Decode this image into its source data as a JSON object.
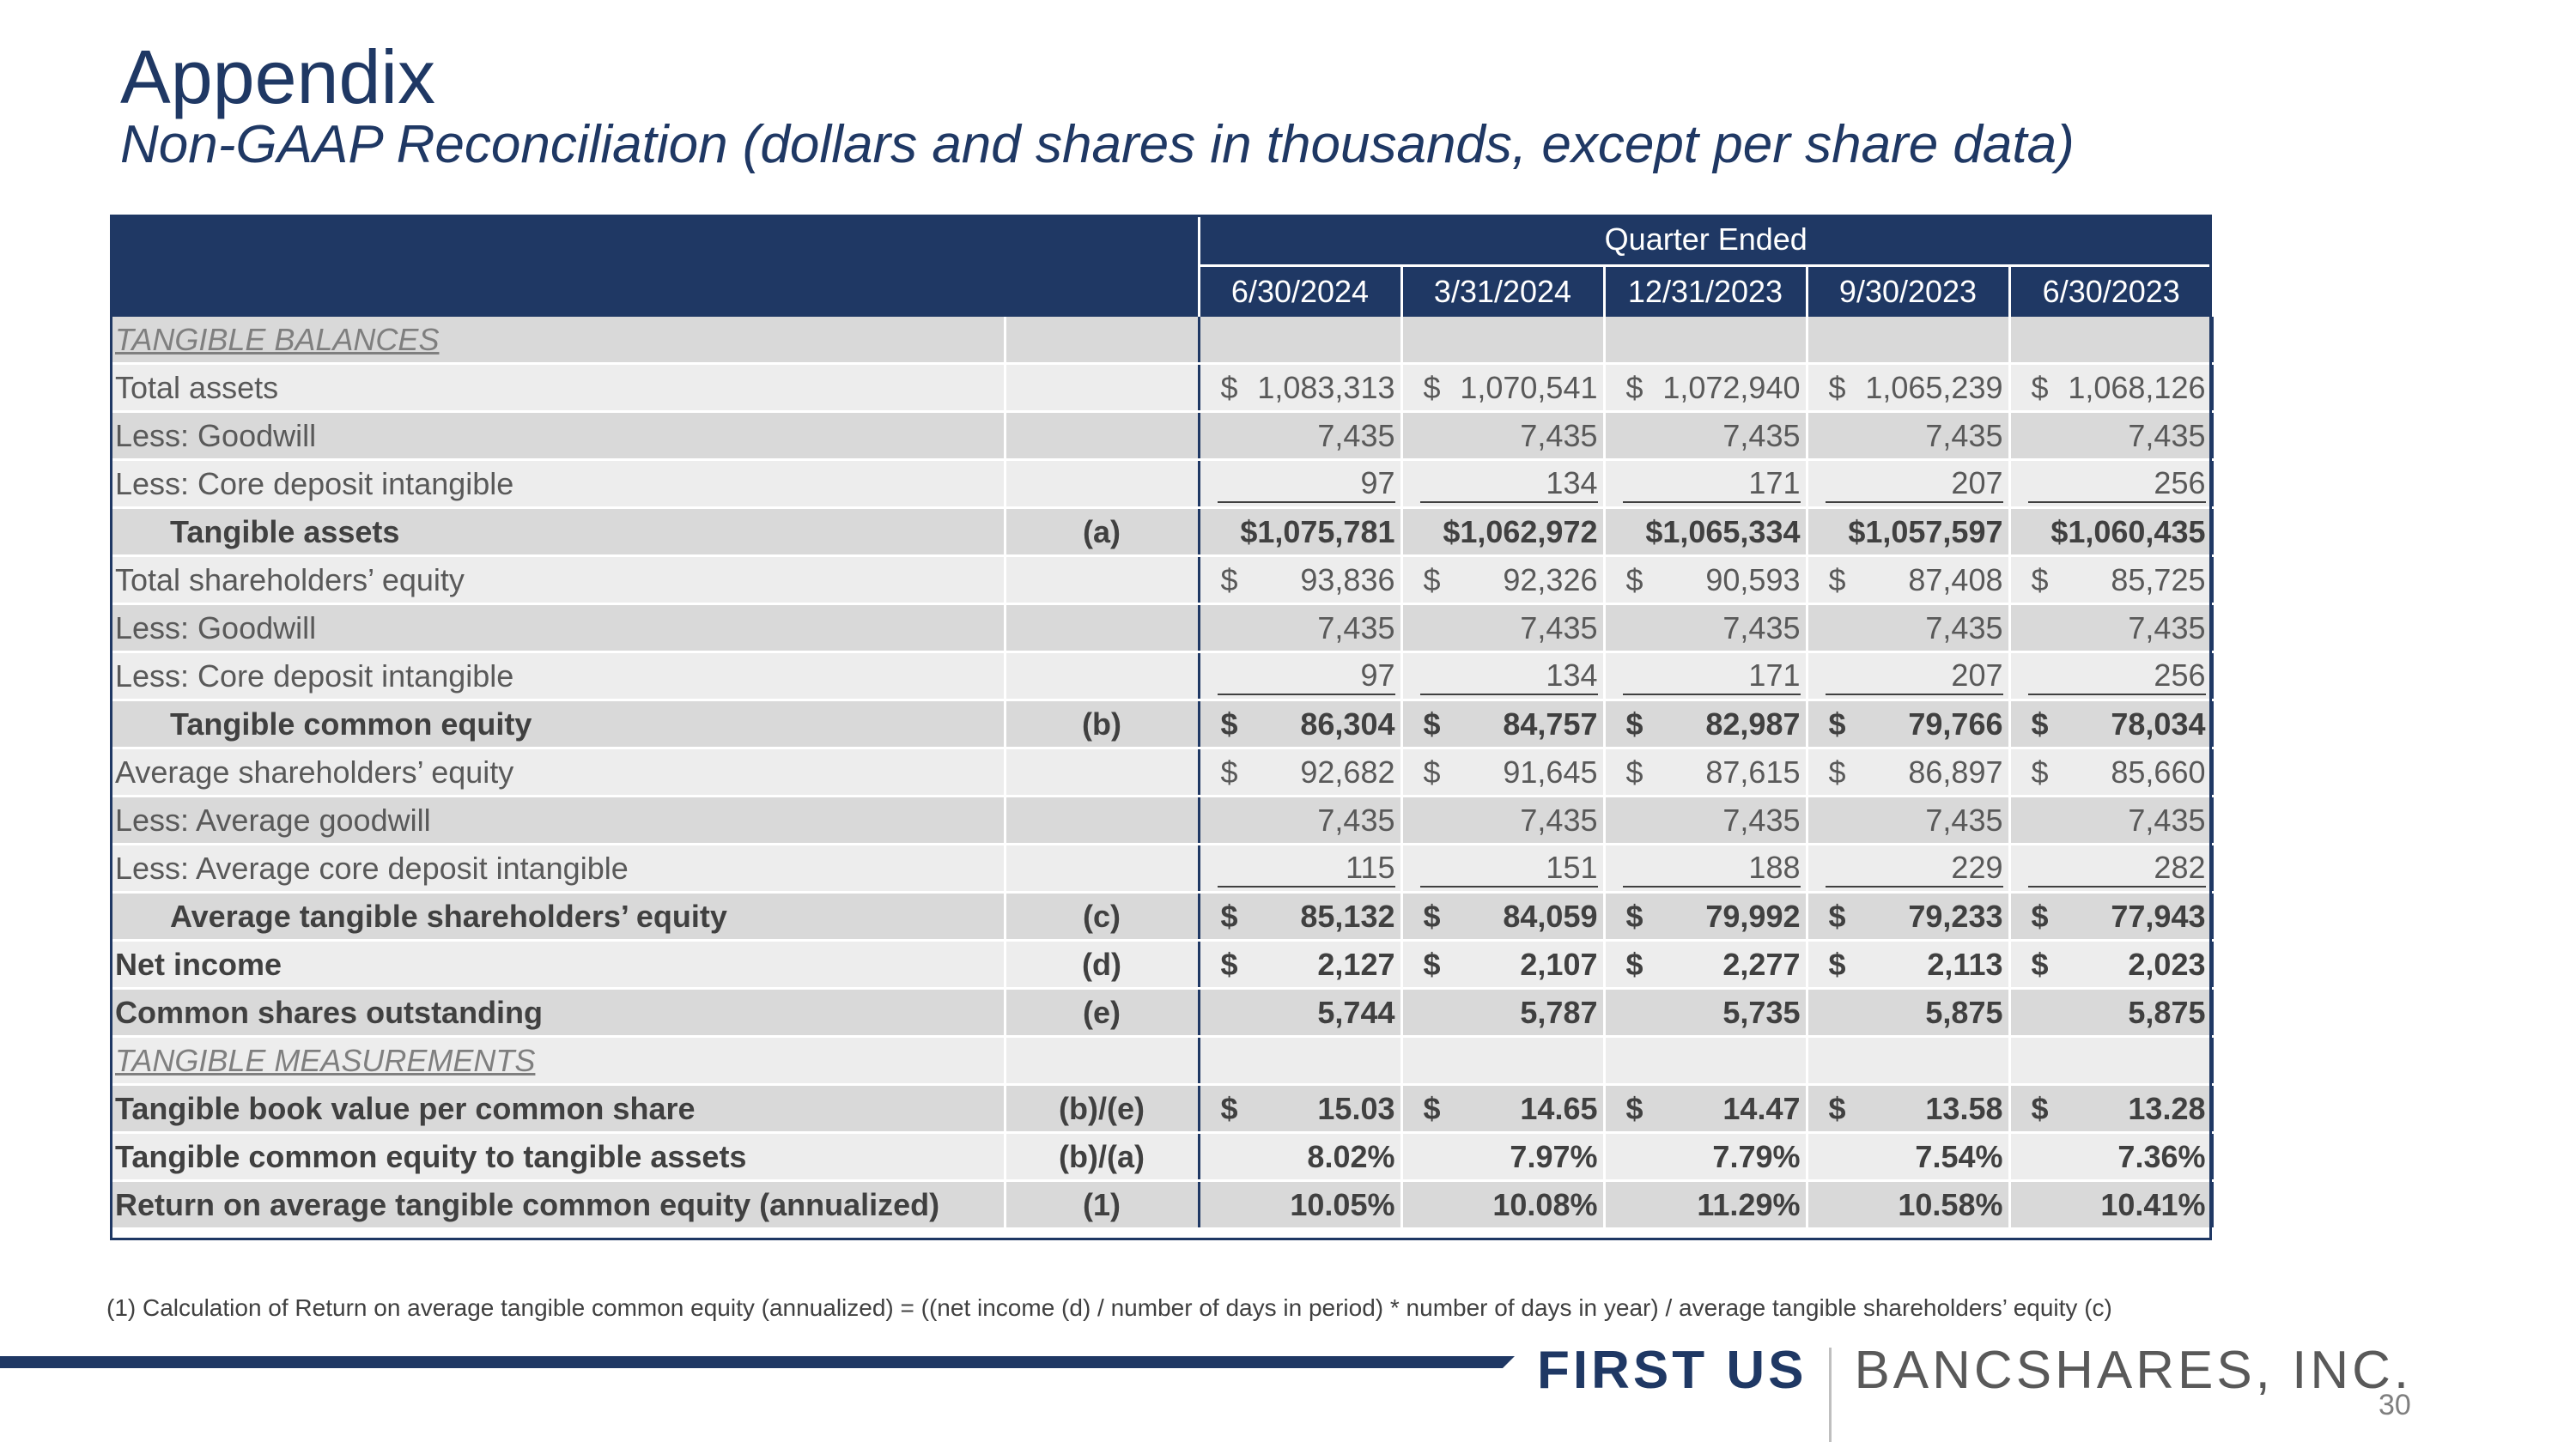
{
  "header": {
    "title": "Appendix",
    "subtitle": "Non-GAAP Reconciliation (dollars and shares in thousands, except per share data)"
  },
  "table": {
    "group_header": "Quarter Ended",
    "columns": [
      "6/30/2024",
      "3/31/2024",
      "12/31/2023",
      "9/30/2023",
      "6/30/2023"
    ],
    "rows": [
      {
        "label": "TANGIBLE BALANCES",
        "ref": "",
        "dollar": false,
        "values": [
          "",
          "",
          "",
          "",
          ""
        ]
      },
      {
        "label": "Total assets",
        "ref": "",
        "dollar": true,
        "values": [
          "1,083,313",
          "1,070,541",
          "1,072,940",
          "1,065,239",
          "1,068,126"
        ]
      },
      {
        "label": "Less: Goodwill",
        "ref": "",
        "dollar": false,
        "values": [
          "7,435",
          "7,435",
          "7,435",
          "7,435",
          "7,435"
        ]
      },
      {
        "label": "Less: Core deposit intangible",
        "ref": "",
        "dollar": false,
        "values": [
          "97",
          "134",
          "171",
          "207",
          "256"
        ]
      },
      {
        "label": "Tangible assets",
        "ref": "(a)",
        "dollar": false,
        "values": [
          "$1,075,781",
          "$1,062,972",
          "$1,065,334",
          "$1,057,597",
          "$1,060,435"
        ]
      },
      {
        "label": "Total shareholders’ equity",
        "ref": "",
        "dollar": true,
        "values": [
          "93,836",
          "92,326",
          "90,593",
          "87,408",
          "85,725"
        ]
      },
      {
        "label": "Less: Goodwill",
        "ref": "",
        "dollar": false,
        "values": [
          "7,435",
          "7,435",
          "7,435",
          "7,435",
          "7,435"
        ]
      },
      {
        "label": "Less: Core deposit intangible",
        "ref": "",
        "dollar": false,
        "values": [
          "97",
          "134",
          "171",
          "207",
          "256"
        ]
      },
      {
        "label": "Tangible common equity",
        "ref": "(b)",
        "dollar": true,
        "values": [
          "86,304",
          "84,757",
          "82,987",
          "79,766",
          "78,034"
        ]
      },
      {
        "label": "Average shareholders’ equity",
        "ref": "",
        "dollar": true,
        "values": [
          "92,682",
          "91,645",
          "87,615",
          "86,897",
          "85,660"
        ]
      },
      {
        "label": "Less: Average goodwill",
        "ref": "",
        "dollar": false,
        "values": [
          "7,435",
          "7,435",
          "7,435",
          "7,435",
          "7,435"
        ]
      },
      {
        "label": "Less: Average core deposit intangible",
        "ref": "",
        "dollar": false,
        "values": [
          "115",
          "151",
          "188",
          "229",
          "282"
        ]
      },
      {
        "label": "Average tangible shareholders’ equity",
        "ref": "(c)",
        "dollar": true,
        "values": [
          "85,132",
          "84,059",
          "79,992",
          "79,233",
          "77,943"
        ]
      },
      {
        "label": "Net income",
        "ref": "(d)",
        "dollar": true,
        "values": [
          "2,127",
          "2,107",
          "2,277",
          "2,113",
          "2,023"
        ]
      },
      {
        "label": "Common shares outstanding",
        "ref": "(e)",
        "dollar": false,
        "values": [
          "5,744",
          "5,787",
          "5,735",
          "5,875",
          "5,875"
        ]
      },
      {
        "label": "TANGIBLE MEASUREMENTS",
        "ref": "",
        "dollar": false,
        "values": [
          "",
          "",
          "",
          "",
          ""
        ]
      },
      {
        "label": "Tangible book value per common share",
        "ref": "(b)/(e)",
        "dollar": true,
        "values": [
          "15.03",
          "14.65",
          "14.47",
          "13.58",
          "13.28"
        ]
      },
      {
        "label": "Tangible common equity to tangible assets",
        "ref": "(b)/(a)",
        "dollar": false,
        "values": [
          "8.02%",
          "7.97%",
          "7.79%",
          "7.54%",
          "7.36%"
        ]
      },
      {
        "label": "Return on average tangible common equity (annualized)",
        "ref": "(1)",
        "dollar": false,
        "values": [
          "10.05%",
          "10.08%",
          "11.29%",
          "10.58%",
          "10.41%"
        ]
      }
    ]
  },
  "footnote": "(1) Calculation of Return on average tangible common equity (annualized) = ((net income (d) / number of days in period) * number of days in year) / average tangible shareholders’ equity (c)",
  "footer": {
    "logo_first": "FIRST US",
    "logo_rest": "BANCSHARES, INC.",
    "page_number": "30",
    "dollar_symbol": "$"
  },
  "colors": {
    "navy": "#1f3864",
    "row_dark": "#d9d9d9",
    "row_light": "#ededed"
  }
}
